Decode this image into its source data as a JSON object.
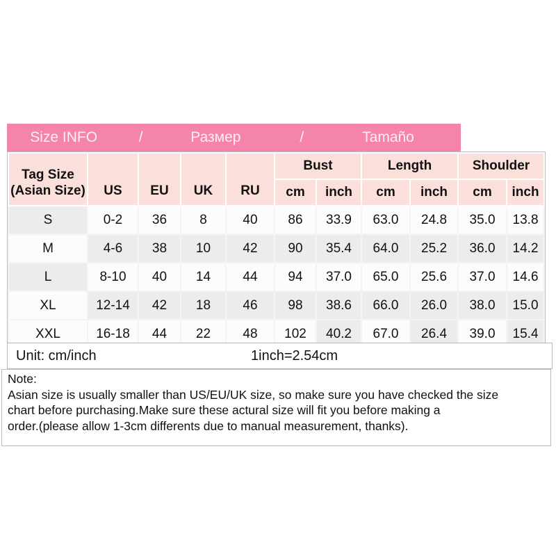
{
  "title_bar": {
    "segments": [
      "Size INFO",
      "/",
      "Размер",
      "/",
      "Tamaño"
    ]
  },
  "table": {
    "tag_header_line1": "Tag Size",
    "tag_header_line2": "(Asian Size)",
    "region_headers": [
      "US",
      "EU",
      "UK",
      "RU"
    ],
    "group_headers": [
      "Bust",
      "Length",
      "Shoulder"
    ],
    "sub_headers": [
      "cm",
      "inch",
      "cm",
      "inch",
      "cm",
      "inch"
    ],
    "rows": [
      {
        "cells": [
          "S",
          "0-2",
          "36",
          "8",
          "40",
          "86",
          "33.9",
          "63.0",
          "24.8",
          "35.0",
          "13.8"
        ]
      },
      {
        "cells": [
          "M",
          "4-6",
          "38",
          "10",
          "42",
          "90",
          "35.4",
          "64.0",
          "25.2",
          "36.0",
          "14.2"
        ]
      },
      {
        "cells": [
          "L",
          "8-10",
          "40",
          "14",
          "44",
          "94",
          "37.0",
          "65.0",
          "25.6",
          "37.0",
          "14.6"
        ]
      },
      {
        "cells": [
          "XL",
          "12-14",
          "42",
          "18",
          "46",
          "98",
          "38.6",
          "66.0",
          "26.0",
          "38.0",
          "15.0"
        ]
      },
      {
        "cells": [
          "XXL",
          "16-18",
          "44",
          "22",
          "48",
          "102",
          "40.2",
          "67.0",
          "26.4",
          "39.0",
          "15.4"
        ]
      }
    ]
  },
  "unit_row": {
    "label": "Unit: cm/inch",
    "conversion": "1inch=2.54cm"
  },
  "note": {
    "title": "Note:",
    "lines": [
      "Asian size is usually smaller than US/EU/UK size, so make sure you have checked the size",
      "chart before purchasing.Make sure these actural size will fit you before making a",
      "order.(please allow 1-3cm differents due to manual measurement, thanks)."
    ]
  },
  "colors": {
    "header_pink": "#f584ab",
    "header_light_pink": "#fbdfda",
    "cell_gray": "#ececec",
    "cell_white": "#fcfcfc"
  }
}
